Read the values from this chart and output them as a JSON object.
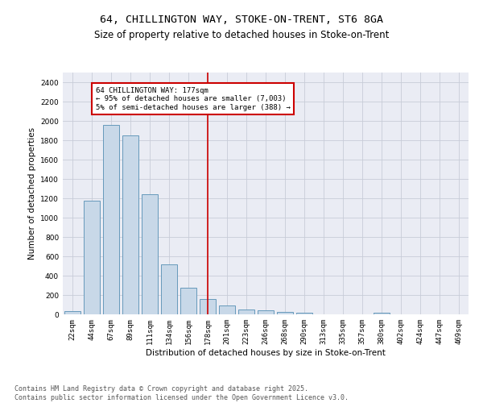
{
  "title_line1": "64, CHILLINGTON WAY, STOKE-ON-TRENT, ST6 8GA",
  "title_line2": "Size of property relative to detached houses in Stoke-on-Trent",
  "xlabel": "Distribution of detached houses by size in Stoke-on-Trent",
  "ylabel": "Number of detached properties",
  "bar_labels": [
    "22sqm",
    "44sqm",
    "67sqm",
    "89sqm",
    "111sqm",
    "134sqm",
    "156sqm",
    "178sqm",
    "201sqm",
    "223sqm",
    "246sqm",
    "268sqm",
    "290sqm",
    "313sqm",
    "335sqm",
    "357sqm",
    "380sqm",
    "402sqm",
    "424sqm",
    "447sqm",
    "469sqm"
  ],
  "bar_values": [
    30,
    1175,
    1960,
    1850,
    1240,
    515,
    275,
    155,
    90,
    48,
    40,
    25,
    15,
    0,
    0,
    0,
    20,
    0,
    0,
    0,
    0
  ],
  "bar_color": "#c8d8e8",
  "bar_edgecolor": "#6699bb",
  "vline_x_index": 7,
  "vline_color": "#cc0000",
  "annotation_text": "64 CHILLINGTON WAY: 177sqm\n← 95% of detached houses are smaller (7,003)\n5% of semi-detached houses are larger (388) →",
  "annotation_box_color": "#cc0000",
  "annotation_facecolor": "white",
  "ylim": [
    0,
    2500
  ],
  "yticks": [
    0,
    200,
    400,
    600,
    800,
    1000,
    1200,
    1400,
    1600,
    1800,
    2000,
    2200,
    2400
  ],
  "grid_color": "#c8ccd8",
  "background_color": "#eaecf4",
  "footer_line1": "Contains HM Land Registry data © Crown copyright and database right 2025.",
  "footer_line2": "Contains public sector information licensed under the Open Government Licence v3.0.",
  "title_fontsize": 9.5,
  "subtitle_fontsize": 8.5,
  "axis_label_fontsize": 7.5,
  "tick_fontsize": 6.5,
  "annotation_fontsize": 6.5,
  "footer_fontsize": 6
}
